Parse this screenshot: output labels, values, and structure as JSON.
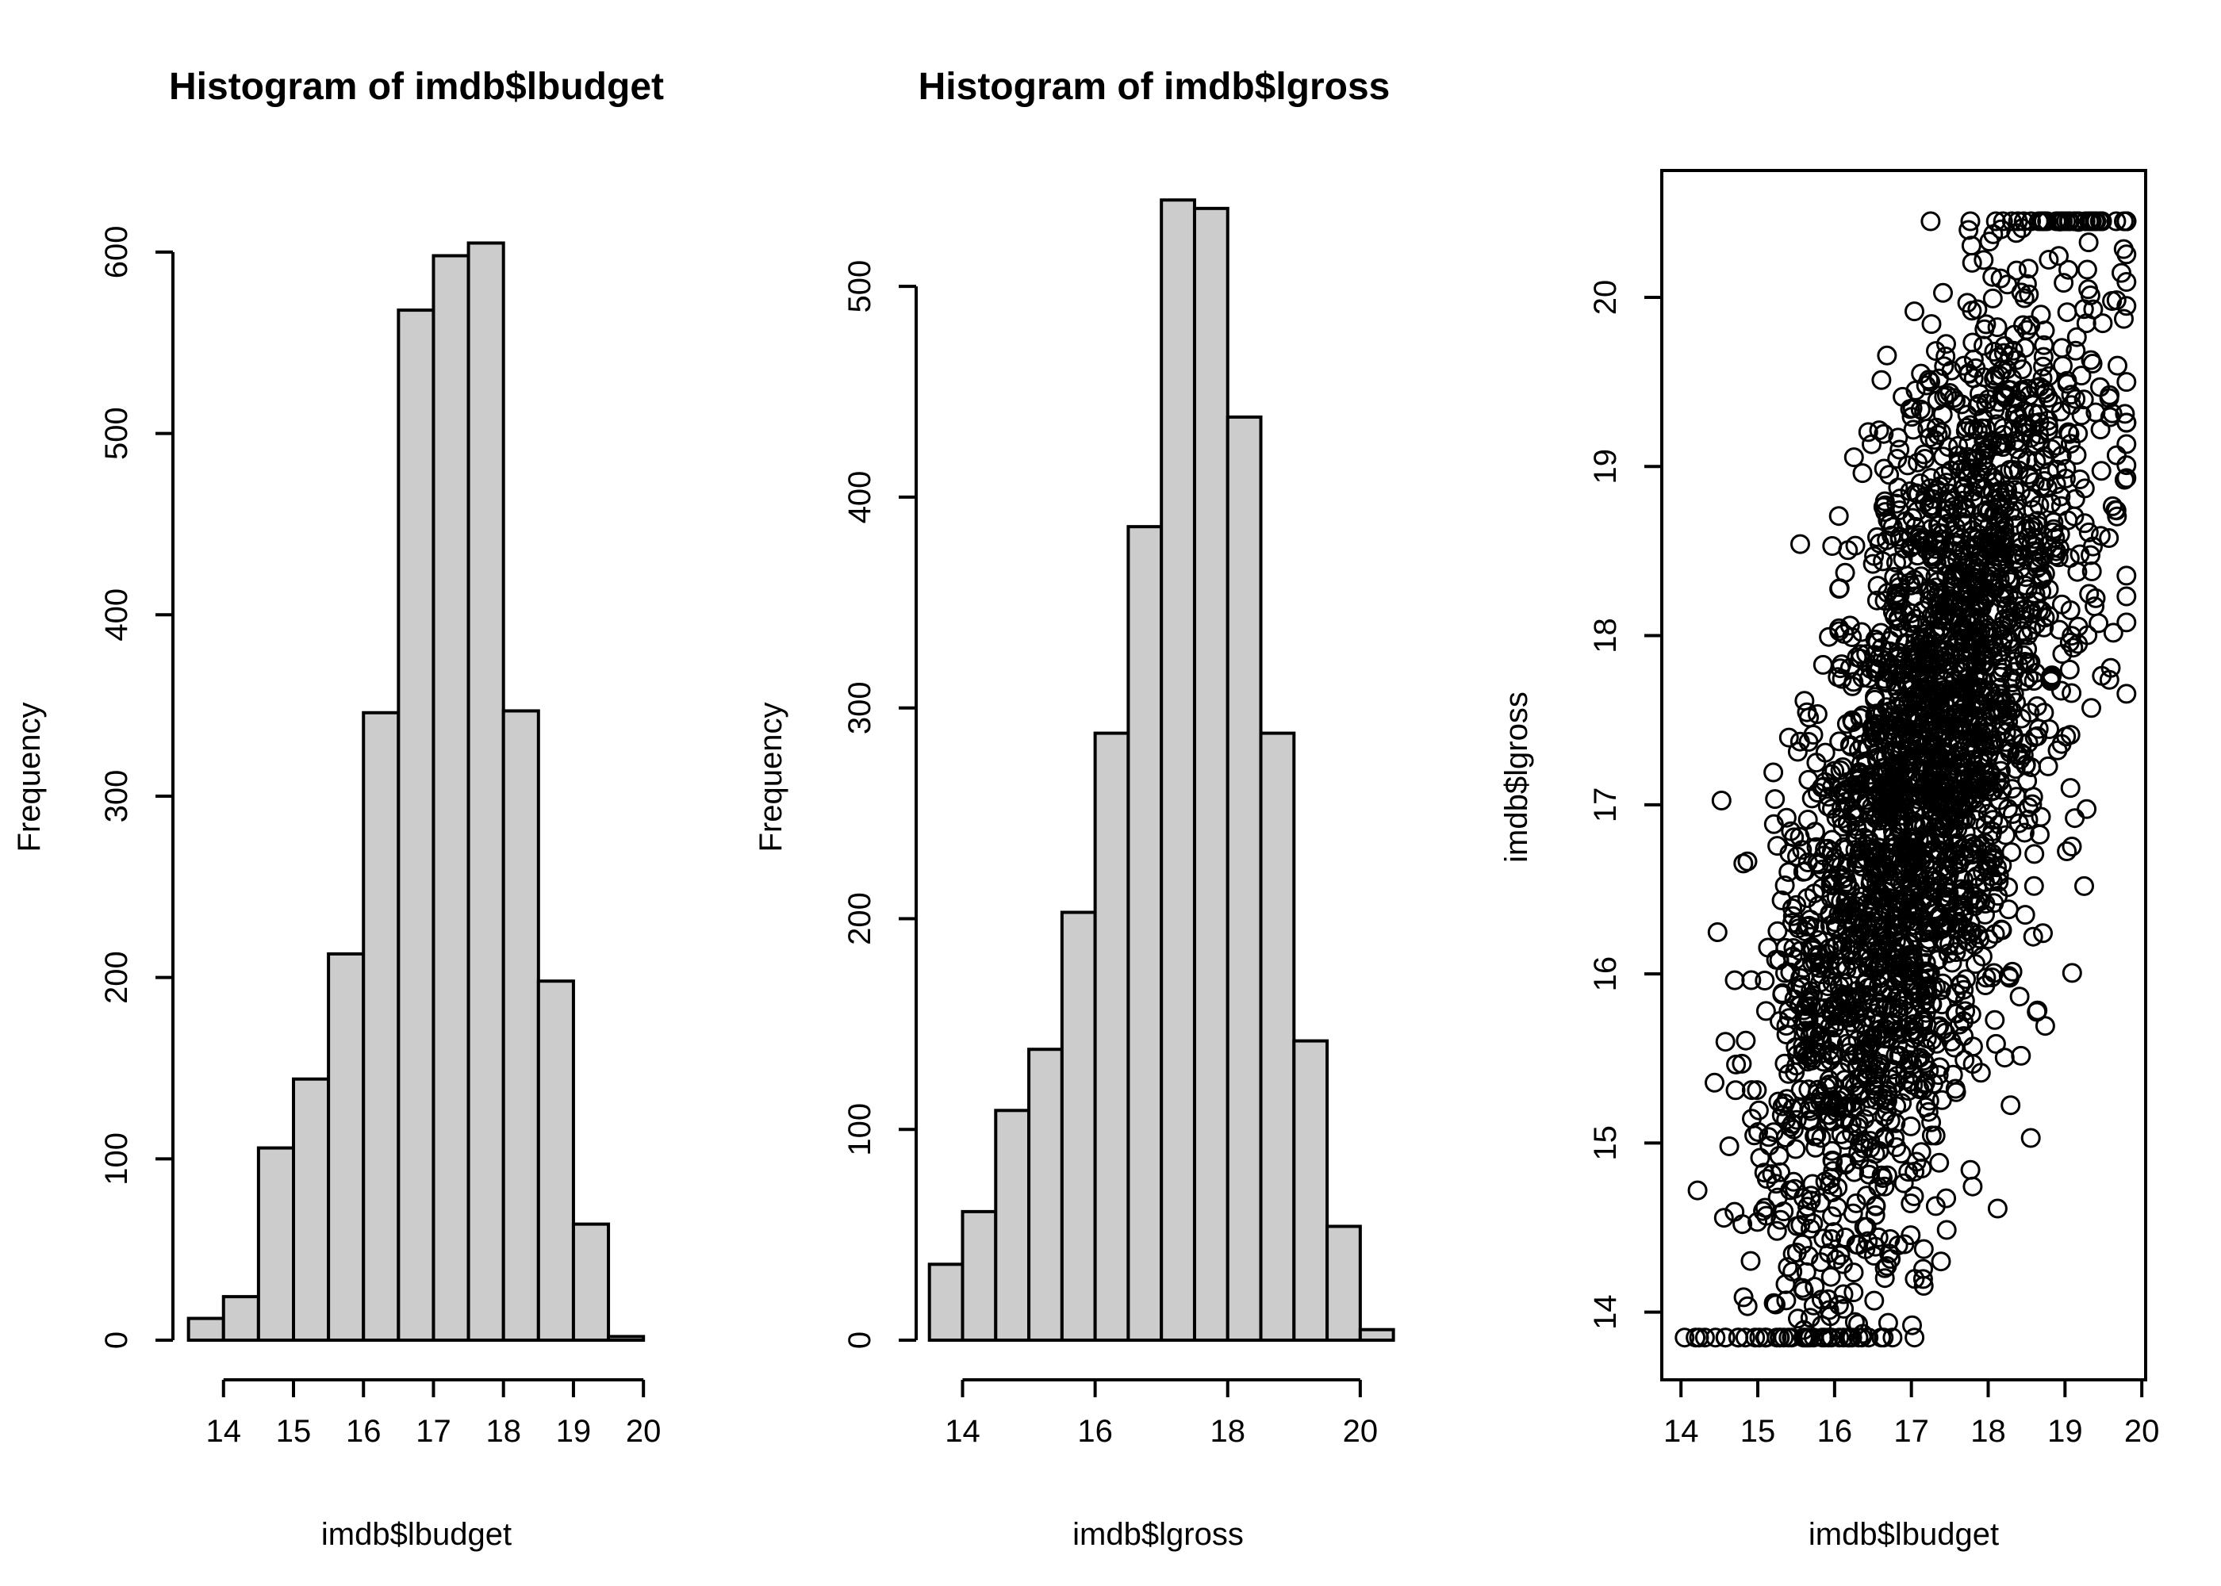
{
  "chart_data": [
    {
      "type": "bar",
      "title": "Histogram of imdb$lbudget",
      "xlabel": "imdb$lbudget",
      "ylabel": "Frequency",
      "bin_edges": [
        13.5,
        14,
        14.5,
        15,
        15.5,
        16,
        16.5,
        17,
        17.5,
        18,
        18.5,
        19,
        19.5,
        20
      ],
      "values": [
        12,
        24,
        106,
        144,
        213,
        346,
        568,
        598,
        605,
        347,
        198,
        64,
        2
      ],
      "xticks": [
        14,
        15,
        16,
        17,
        18,
        19,
        20
      ],
      "xlim": [
        13.3,
        20.1
      ],
      "yticks": [
        0,
        100,
        200,
        300,
        400,
        500,
        600
      ],
      "ylim": [
        0,
        645
      ],
      "fill": "#cccccc",
      "grid": false
    },
    {
      "type": "bar",
      "title": "Histogram of imdb$lgross",
      "xlabel": "imdb$lgross",
      "ylabel": "Frequency",
      "bin_edges": [
        13.5,
        14,
        14.5,
        15,
        15.5,
        16,
        16.5,
        17,
        17.5,
        18,
        18.5,
        19,
        19.5,
        20,
        20.5
      ],
      "values": [
        36,
        61,
        109,
        138,
        203,
        288,
        386,
        541,
        537,
        438,
        288,
        142,
        54,
        5
      ],
      "xticks": [
        14,
        16,
        18,
        20
      ],
      "xlim": [
        13.3,
        20.6
      ],
      "yticks": [
        0,
        100,
        200,
        300,
        400,
        500
      ],
      "ylim": [
        0,
        555
      ],
      "fill": "#cccccc",
      "grid": false
    },
    {
      "type": "scatter",
      "title": "",
      "xlabel": "imdb$lbudget",
      "ylabel": "imdb$lgross",
      "n_points": 2800,
      "seed": 7,
      "x_mean": 17.2,
      "x_sd": 1.05,
      "x_range": [
        13.9,
        19.8
      ],
      "y_range": [
        13.85,
        20.45
      ],
      "y_intercept": -0.05,
      "y_slope": 1.0,
      "y_noise_sd": 1.1,
      "xticks": [
        14,
        15,
        16,
        17,
        18,
        19,
        20
      ],
      "yticks": [
        14,
        15,
        16,
        17,
        18,
        19,
        20
      ],
      "xlim": [
        13.75,
        20.05
      ],
      "ylim": [
        13.6,
        20.75
      ],
      "marker": "open-circle",
      "grid": false
    }
  ]
}
